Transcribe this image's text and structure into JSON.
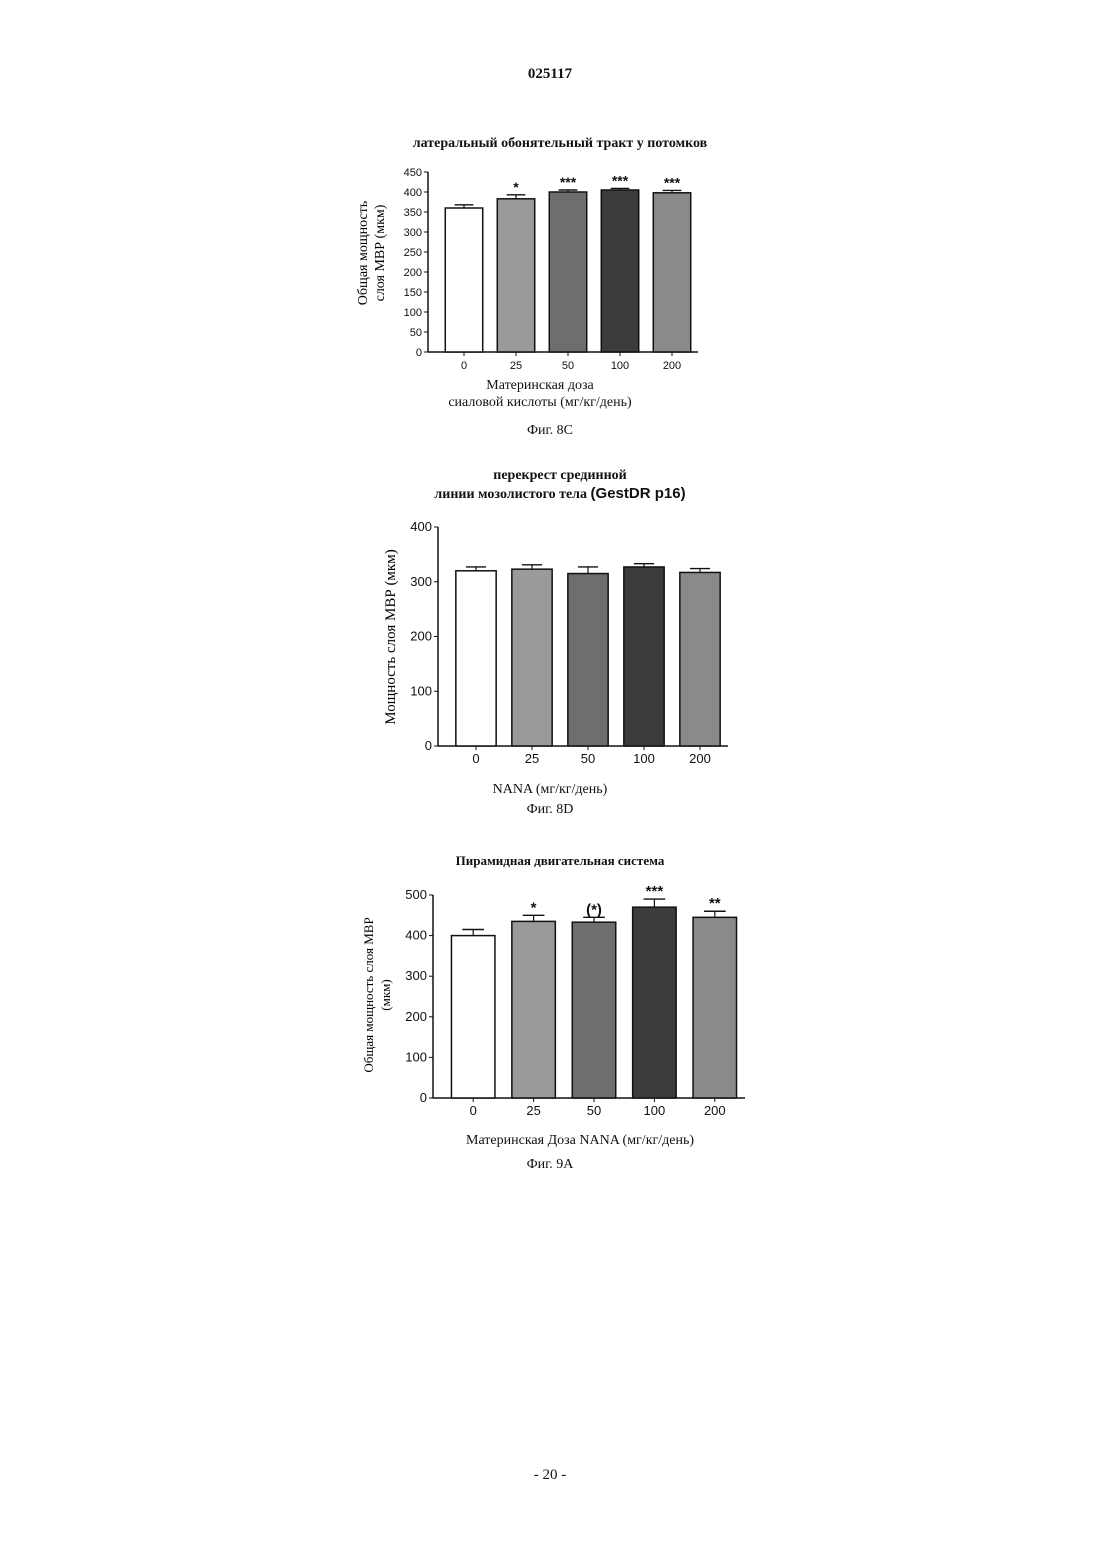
{
  "document": {
    "number": "025117",
    "page_number": "- 20 -"
  },
  "chart_data": [
    {
      "type": "bar",
      "title": "латеральный обонятельный тракт у потомков",
      "ylabel_line1": "Общая мощность",
      "ylabel_line2": "слоя МВР (мкм)",
      "xlabel_line1": "Материнская доза",
      "xlabel_line2": "сиаловой кислоты (мг/кг/день)",
      "caption": "Фиг. 8С",
      "categories": [
        "0",
        "25",
        "50",
        "100",
        "200"
      ],
      "values": [
        360,
        383,
        400,
        405,
        398
      ],
      "errors": [
        8,
        10,
        5,
        4,
        6
      ],
      "significance": [
        "",
        "*",
        "***",
        "***",
        "***"
      ],
      "ylim": [
        0,
        450
      ],
      "yticks": [
        0,
        50,
        100,
        150,
        200,
        250,
        300,
        350,
        400,
        450
      ],
      "bar_colors": [
        "#ffffff",
        "#9a9a9a",
        "#6e6e6e",
        "#3c3c3c",
        "#8a8a8a"
      ]
    },
    {
      "type": "bar",
      "title_line1": "перекрест срединной",
      "title_line2": "линии мозолистого тела",
      "title_suffix": "(GestDR p16)",
      "ylabel": "Мощность слоя МВР (мкм)",
      "xlabel": "NANA (мг/кг/день)",
      "caption": "Фиг. 8D",
      "categories": [
        "0",
        "25",
        "50",
        "100",
        "200"
      ],
      "values": [
        320,
        323,
        315,
        327,
        317
      ],
      "errors": [
        7,
        8,
        12,
        6,
        7
      ],
      "significance": [
        "",
        "",
        "",
        "",
        ""
      ],
      "ylim": [
        0,
        400
      ],
      "yticks": [
        0,
        100,
        200,
        300,
        400
      ],
      "bar_colors": [
        "#ffffff",
        "#9a9a9a",
        "#6e6e6e",
        "#3c3c3c",
        "#8a8a8a"
      ]
    },
    {
      "type": "bar",
      "title": "Пирамидная двигательная система",
      "ylabel_line1": "Общая мощность слоя МВР",
      "ylabel_line2": "(мкм)",
      "xlabel": "Материнская Доза NANA (мг/кг/день)",
      "caption": "Фиг. 9А",
      "categories": [
        "0",
        "25",
        "50",
        "100",
        "200"
      ],
      "values": [
        400,
        435,
        433,
        470,
        445
      ],
      "errors": [
        15,
        15,
        12,
        20,
        15
      ],
      "significance": [
        "",
        "*",
        "(*)",
        "***",
        "**"
      ],
      "ylim": [
        0,
        500
      ],
      "yticks": [
        0,
        100,
        200,
        300,
        400,
        500
      ],
      "bar_colors": [
        "#ffffff",
        "#9a9a9a",
        "#6e6e6e",
        "#3c3c3c",
        "#8a8a8a"
      ]
    }
  ]
}
